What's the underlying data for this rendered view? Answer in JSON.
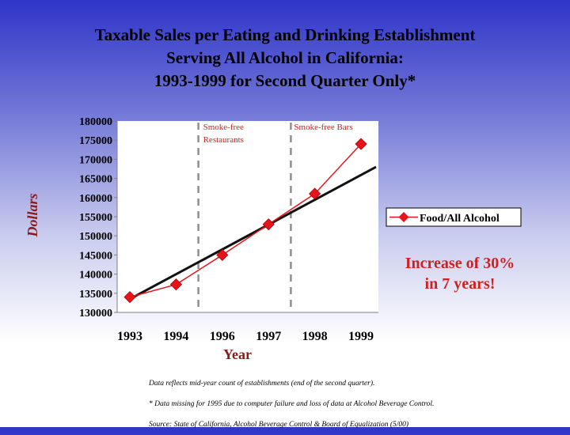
{
  "title_lines": [
    "Taxable Sales per Eating and Drinking Establishment",
    "Serving All Alcohol in California:",
    "1993-1999 for Second Quarter Only*"
  ],
  "chart_data": {
    "type": "line",
    "title": "Taxable Sales per Eating and Drinking Establishment Serving All Alcohol in California: 1993-1999 for Second Quarter Only*",
    "xlabel": "Year",
    "ylabel": "Dollars",
    "categories": [
      "1993",
      "1994",
      "1996",
      "1997",
      "1998",
      "1999"
    ],
    "ylim": [
      130000,
      180000
    ],
    "yticks": [
      130000,
      135000,
      140000,
      145000,
      150000,
      155000,
      160000,
      165000,
      170000,
      175000,
      180000
    ],
    "yticks_labels": [
      "130000",
      "135000",
      "140000",
      "145000",
      "150000",
      "155000",
      "160000",
      "165000",
      "170000",
      "175000",
      "180000"
    ],
    "series": [
      {
        "name": "Food/All Alcohol",
        "values": [
          134000,
          137300,
          145000,
          153000,
          161000,
          174000
        ],
        "color": "#e8141c"
      }
    ],
    "trendline": {
      "start": 133500,
      "end": 168000,
      "color": "#111111"
    },
    "markers": [
      {
        "label": "Smoke-free Restaurants",
        "between": [
          "1994",
          "1996"
        ]
      },
      {
        "label": "Smoke-free Bars",
        "between": [
          "1997",
          "1998"
        ]
      }
    ],
    "legend": {
      "label": "Food/All Alcohol",
      "position": "right"
    },
    "annotation": [
      "Increase of 30%",
      "in 7 years!"
    ],
    "annotation_color": "#cc2222",
    "grid": false
  },
  "notes": [
    "Data reflects mid-year count of establishments (end of the second quarter).",
    "* Data missing for 1995 due to computer failure and loss of data at Alcohol Beverage Control.",
    "Source: State of California, Alcohol Beverage Control & Board of Equalization (5/00)"
  ]
}
